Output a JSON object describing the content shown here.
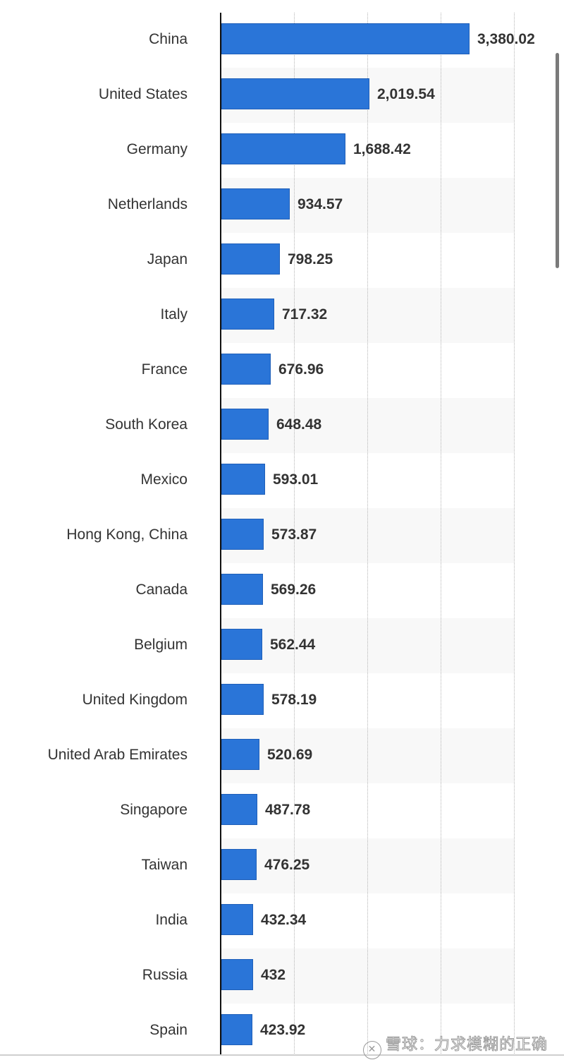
{
  "chart_data": {
    "type": "bar",
    "orientation": "horizontal",
    "title": "",
    "xlabel": "",
    "ylabel": "",
    "xlim": [
      0,
      4000
    ],
    "grid": true,
    "gridlines_at": [
      1000,
      2000,
      3000,
      4000
    ],
    "categories": [
      "China",
      "United States",
      "Germany",
      "Netherlands",
      "Japan",
      "Italy",
      "France",
      "South Korea",
      "Mexico",
      "Hong Kong, China",
      "Canada",
      "Belgium",
      "United Kingdom",
      "United Arab Emirates",
      "Singapore",
      "Taiwan",
      "India",
      "Russia",
      "Spain"
    ],
    "values": [
      3380.02,
      2019.54,
      1688.42,
      934.57,
      798.25,
      717.32,
      676.96,
      648.48,
      593.01,
      573.87,
      569.26,
      562.44,
      578.19,
      520.69,
      487.78,
      476.25,
      432.34,
      432,
      423.92
    ],
    "value_labels": [
      "3,380.02",
      "2,019.54",
      "1,688.42",
      "934.57",
      "798.25",
      "717.32",
      "676.96",
      "648.48",
      "593.01",
      "573.87",
      "569.26",
      "562.44",
      "578.19",
      "520.69",
      "487.78",
      "476.25",
      "432.34",
      "432",
      "423.92"
    ],
    "bar_color": "#2a75d8"
  },
  "watermark": {
    "logo": "snowball-logo-icon",
    "text": "雪球：力求模糊的正确"
  }
}
